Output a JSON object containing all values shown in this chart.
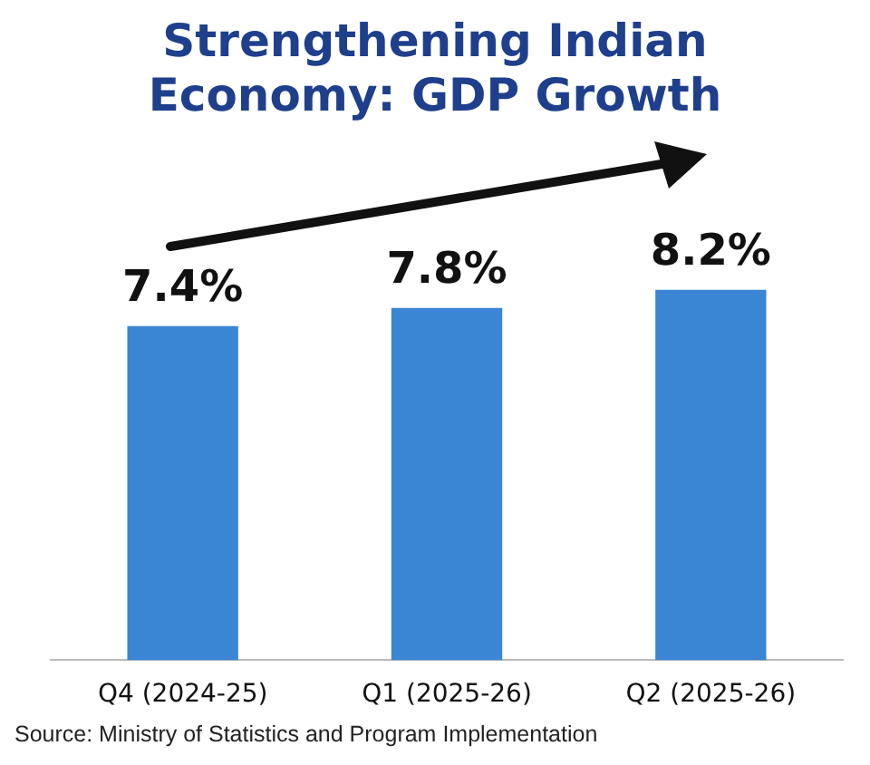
{
  "chart_data": {
    "type": "bar",
    "title": "Strengthening Indian Economy: GDP Growth",
    "categories": [
      "Q4 (2024-25)",
      "Q1 (2025-26)",
      "Q2 (2025-26)"
    ],
    "values": [
      7.4,
      7.8,
      8.2
    ],
    "value_labels": [
      "7.4%",
      "7.8%",
      "8.2%"
    ],
    "color": "#3a86d4",
    "annotations": [
      "Source: Ministry of Statistics and Program Implementation"
    ]
  }
}
